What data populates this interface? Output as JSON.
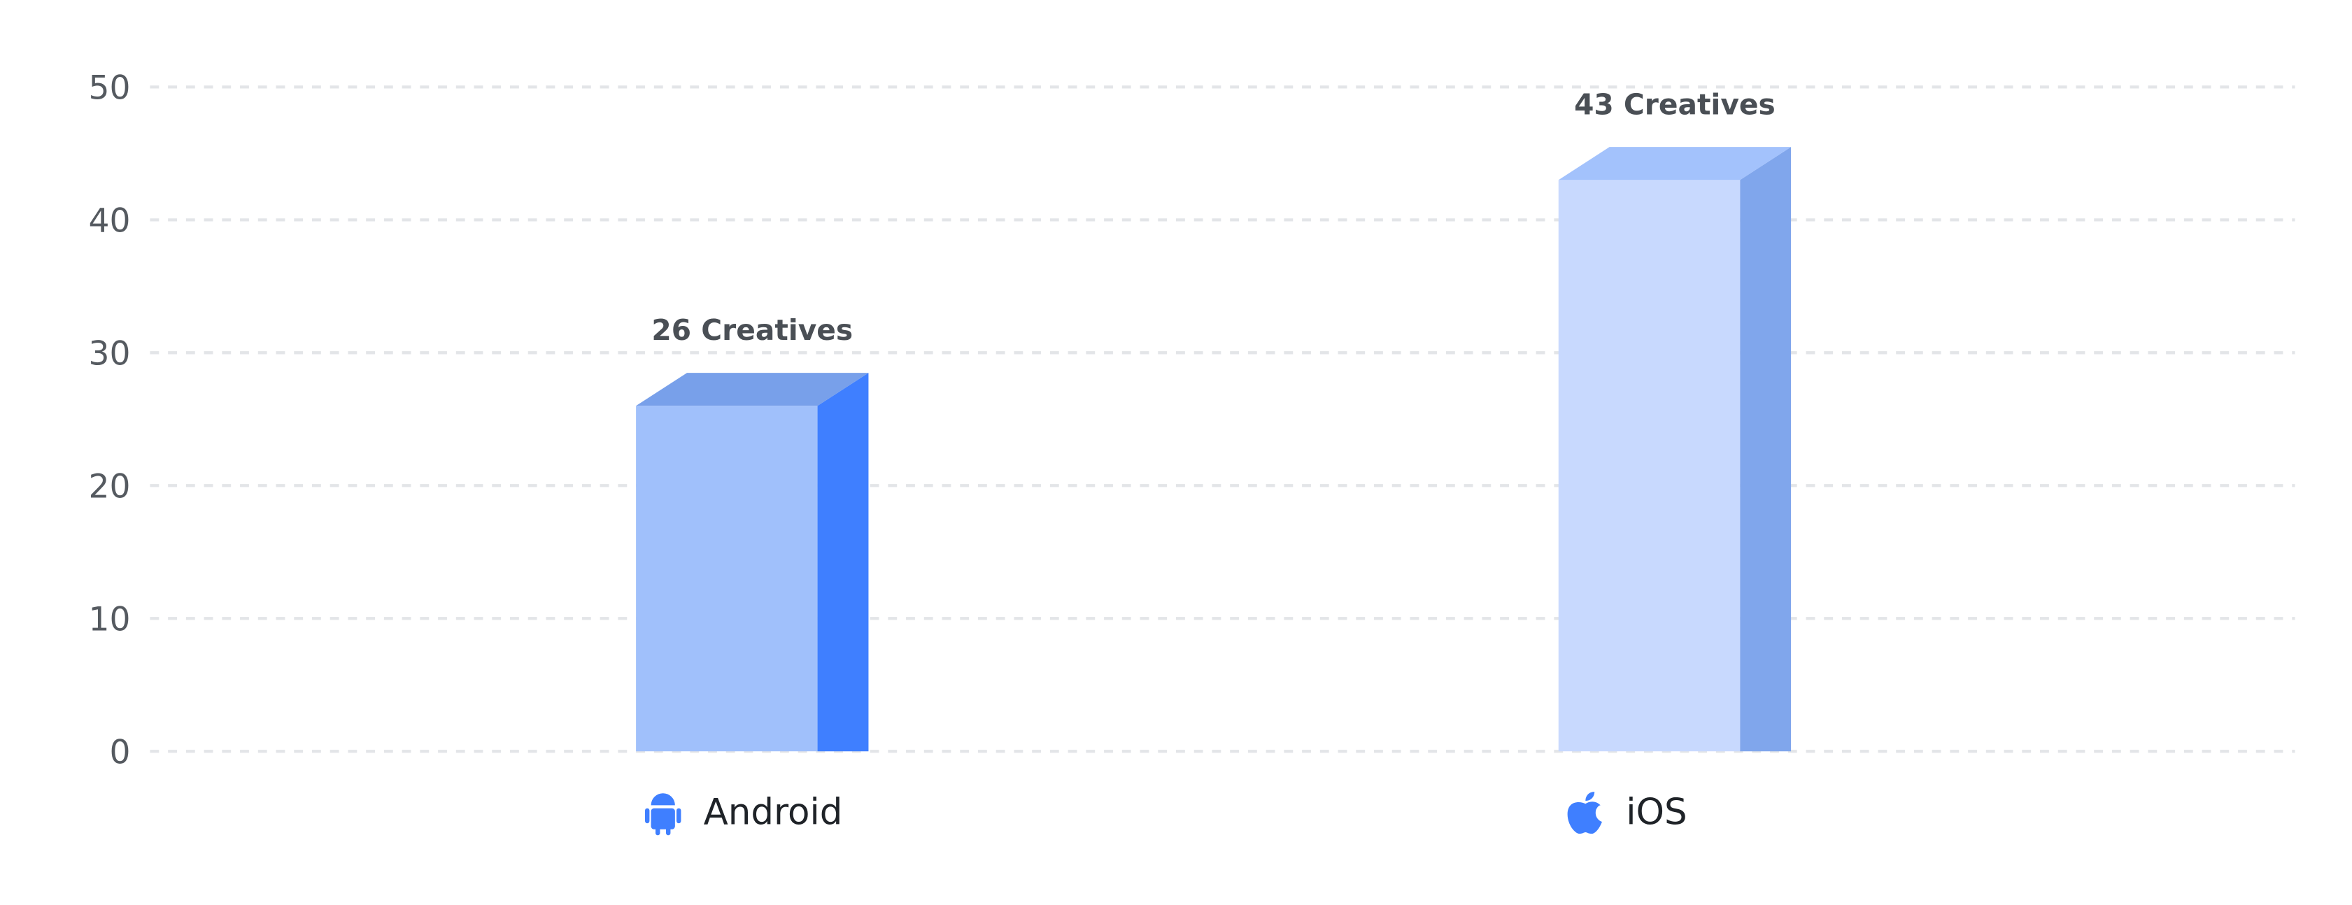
{
  "chart_data": {
    "type": "bar3d",
    "categories": [
      "Android",
      "iOS"
    ],
    "values": [
      26,
      43
    ],
    "value_labels": [
      "26 Creatives",
      "43 Creatives"
    ],
    "bar_styles": [
      {
        "front": "#a0c0fb",
        "side": "#3f7fff",
        "top": "#78a0ea"
      },
      {
        "front": "#c8d9fe",
        "side": "#80a6ec",
        "top": "#a3c2fc"
      }
    ],
    "icon_color": "#3f7fff",
    "ylim": [
      0,
      50
    ],
    "yticks": [
      0,
      10,
      20,
      30,
      40,
      50
    ],
    "grid": true
  }
}
